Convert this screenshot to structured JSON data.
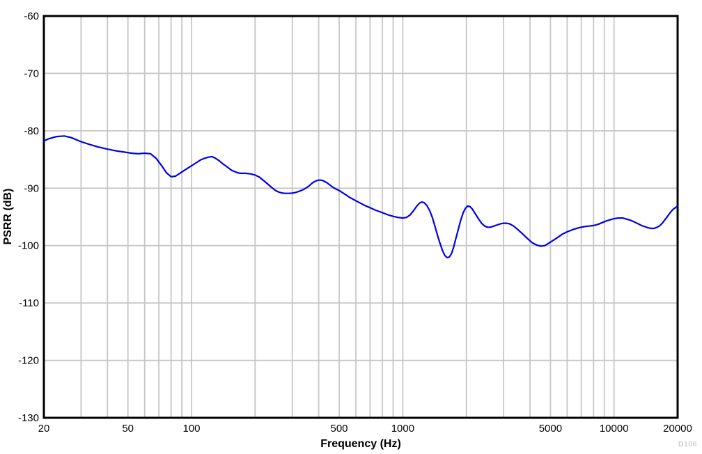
{
  "watermark": "D106",
  "colors": {
    "curve": "#0000e8",
    "grid": "#c6c6c6",
    "axis_box": "#000000",
    "tick_text": "#000000",
    "watermark": "#b2b8be",
    "background": "#ffffff"
  },
  "chart_data": {
    "type": "line",
    "title": "",
    "xlabel": "Frequency (Hz)",
    "ylabel": "PSRR (dB)",
    "x_scale": "log",
    "x_range": [
      20,
      20000
    ],
    "y_range": [
      -130,
      -60
    ],
    "grid": true,
    "legend": "none",
    "x_ticks": [
      {
        "value": 20,
        "label": "20"
      },
      {
        "value": 50,
        "label": "50"
      },
      {
        "value": 100,
        "label": "100"
      },
      {
        "value": 500,
        "label": "500"
      },
      {
        "value": 1000,
        "label": "1000"
      },
      {
        "value": 5000,
        "label": "5000"
      },
      {
        "value": 10000,
        "label": "10000"
      },
      {
        "value": 20000,
        "label": "20000"
      }
    ],
    "y_ticks": [
      {
        "value": -60,
        "label": "-60"
      },
      {
        "value": -70,
        "label": "-70"
      },
      {
        "value": -80,
        "label": "-80"
      },
      {
        "value": -90,
        "label": "-90"
      },
      {
        "value": -100,
        "label": "-100"
      },
      {
        "value": -110,
        "label": "-110"
      },
      {
        "value": -120,
        "label": "-120"
      },
      {
        "value": -130,
        "label": "-130"
      }
    ],
    "x_gridlines": [
      30,
      40,
      50,
      60,
      70,
      80,
      90,
      100,
      200,
      300,
      400,
      500,
      600,
      700,
      800,
      900,
      1000,
      2000,
      3000,
      4000,
      5000,
      6000,
      7000,
      8000,
      9000,
      10000
    ],
    "y_gridlines": [
      -70,
      -80,
      -90,
      -100,
      -110,
      -120
    ],
    "series": [
      {
        "name": "PSRR",
        "color": "#0000e8",
        "points": [
          [
            20,
            -81.8
          ],
          [
            21,
            -81.4
          ],
          [
            23,
            -81.0
          ],
          [
            25,
            -80.9
          ],
          [
            27,
            -81.2
          ],
          [
            30,
            -81.9
          ],
          [
            33,
            -82.4
          ],
          [
            36,
            -82.8
          ],
          [
            40,
            -83.2
          ],
          [
            44,
            -83.5
          ],
          [
            48,
            -83.7
          ],
          [
            52,
            -83.9
          ],
          [
            56,
            -84.0
          ],
          [
            60,
            -83.9
          ],
          [
            64,
            -84.0
          ],
          [
            68,
            -84.8
          ],
          [
            72,
            -86.0
          ],
          [
            76,
            -87.3
          ],
          [
            80,
            -88.0
          ],
          [
            84,
            -87.9
          ],
          [
            88,
            -87.4
          ],
          [
            95,
            -86.6
          ],
          [
            100,
            -86.1
          ],
          [
            105,
            -85.6
          ],
          [
            110,
            -85.1
          ],
          [
            115,
            -84.8
          ],
          [
            120,
            -84.6
          ],
          [
            125,
            -84.5
          ],
          [
            130,
            -84.8
          ],
          [
            135,
            -85.2
          ],
          [
            140,
            -85.7
          ],
          [
            145,
            -86.1
          ],
          [
            150,
            -86.5
          ],
          [
            155,
            -86.9
          ],
          [
            160,
            -87.1
          ],
          [
            165,
            -87.3
          ],
          [
            170,
            -87.4
          ],
          [
            180,
            -87.4
          ],
          [
            190,
            -87.5
          ],
          [
            200,
            -87.7
          ],
          [
            210,
            -88.1
          ],
          [
            220,
            -88.7
          ],
          [
            230,
            -89.3
          ],
          [
            240,
            -89.9
          ],
          [
            250,
            -90.4
          ],
          [
            260,
            -90.7
          ],
          [
            270,
            -90.85
          ],
          [
            280,
            -90.9
          ],
          [
            290,
            -90.9
          ],
          [
            300,
            -90.85
          ],
          [
            310,
            -90.75
          ],
          [
            320,
            -90.6
          ],
          [
            330,
            -90.4
          ],
          [
            340,
            -90.2
          ],
          [
            350,
            -89.9
          ],
          [
            360,
            -89.6
          ],
          [
            370,
            -89.2
          ],
          [
            380,
            -88.9
          ],
          [
            390,
            -88.7
          ],
          [
            400,
            -88.6
          ],
          [
            410,
            -88.6
          ],
          [
            420,
            -88.7
          ],
          [
            435,
            -89.0
          ],
          [
            450,
            -89.4
          ],
          [
            465,
            -89.8
          ],
          [
            480,
            -90.1
          ],
          [
            500,
            -90.4
          ],
          [
            520,
            -90.8
          ],
          [
            540,
            -91.2
          ],
          [
            560,
            -91.6
          ],
          [
            580,
            -91.9
          ],
          [
            600,
            -92.2
          ],
          [
            630,
            -92.6
          ],
          [
            660,
            -93.0
          ],
          [
            700,
            -93.4
          ],
          [
            740,
            -93.8
          ],
          [
            780,
            -94.1
          ],
          [
            820,
            -94.4
          ],
          [
            860,
            -94.7
          ],
          [
            900,
            -94.9
          ],
          [
            950,
            -95.1
          ],
          [
            1000,
            -95.2
          ],
          [
            1040,
            -95.1
          ],
          [
            1080,
            -94.7
          ],
          [
            1120,
            -94.0
          ],
          [
            1160,
            -93.2
          ],
          [
            1200,
            -92.6
          ],
          [
            1230,
            -92.4
          ],
          [
            1260,
            -92.5
          ],
          [
            1300,
            -93.0
          ],
          [
            1340,
            -93.9
          ],
          [
            1380,
            -95.1
          ],
          [
            1420,
            -96.6
          ],
          [
            1460,
            -98.2
          ],
          [
            1500,
            -99.6
          ],
          [
            1540,
            -100.8
          ],
          [
            1580,
            -101.7
          ],
          [
            1620,
            -102.1
          ],
          [
            1660,
            -102.0
          ],
          [
            1700,
            -101.4
          ],
          [
            1740,
            -100.3
          ],
          [
            1780,
            -98.9
          ],
          [
            1830,
            -97.2
          ],
          [
            1880,
            -95.6
          ],
          [
            1930,
            -94.3
          ],
          [
            1980,
            -93.5
          ],
          [
            2030,
            -93.1
          ],
          [
            2080,
            -93.2
          ],
          [
            2130,
            -93.6
          ],
          [
            2200,
            -94.4
          ],
          [
            2280,
            -95.3
          ],
          [
            2360,
            -96.1
          ],
          [
            2440,
            -96.6
          ],
          [
            2520,
            -96.8
          ],
          [
            2600,
            -96.8
          ],
          [
            2700,
            -96.6
          ],
          [
            2800,
            -96.4
          ],
          [
            2900,
            -96.2
          ],
          [
            3000,
            -96.1
          ],
          [
            3100,
            -96.1
          ],
          [
            3200,
            -96.2
          ],
          [
            3350,
            -96.6
          ],
          [
            3500,
            -97.2
          ],
          [
            3700,
            -98.0
          ],
          [
            3900,
            -98.8
          ],
          [
            4100,
            -99.5
          ],
          [
            4300,
            -99.9
          ],
          [
            4500,
            -100.1
          ],
          [
            4700,
            -100.0
          ],
          [
            4900,
            -99.6
          ],
          [
            5100,
            -99.2
          ],
          [
            5400,
            -98.6
          ],
          [
            5700,
            -98.0
          ],
          [
            6000,
            -97.6
          ],
          [
            6400,
            -97.2
          ],
          [
            6800,
            -96.9
          ],
          [
            7200,
            -96.7
          ],
          [
            7600,
            -96.6
          ],
          [
            8000,
            -96.5
          ],
          [
            8400,
            -96.3
          ],
          [
            8800,
            -96.0
          ],
          [
            9200,
            -95.7
          ],
          [
            9600,
            -95.5
          ],
          [
            10000,
            -95.3
          ],
          [
            10500,
            -95.2
          ],
          [
            11000,
            -95.2
          ],
          [
            11500,
            -95.4
          ],
          [
            12000,
            -95.6
          ],
          [
            12500,
            -95.9
          ],
          [
            13000,
            -96.2
          ],
          [
            13500,
            -96.5
          ],
          [
            14000,
            -96.7
          ],
          [
            14500,
            -96.9
          ],
          [
            15000,
            -97.0
          ],
          [
            15500,
            -97.0
          ],
          [
            16000,
            -96.8
          ],
          [
            16500,
            -96.5
          ],
          [
            17000,
            -96.0
          ],
          [
            17500,
            -95.4
          ],
          [
            18000,
            -94.8
          ],
          [
            18500,
            -94.2
          ],
          [
            19000,
            -93.7
          ],
          [
            19500,
            -93.4
          ],
          [
            20000,
            -93.1
          ]
        ]
      }
    ]
  }
}
